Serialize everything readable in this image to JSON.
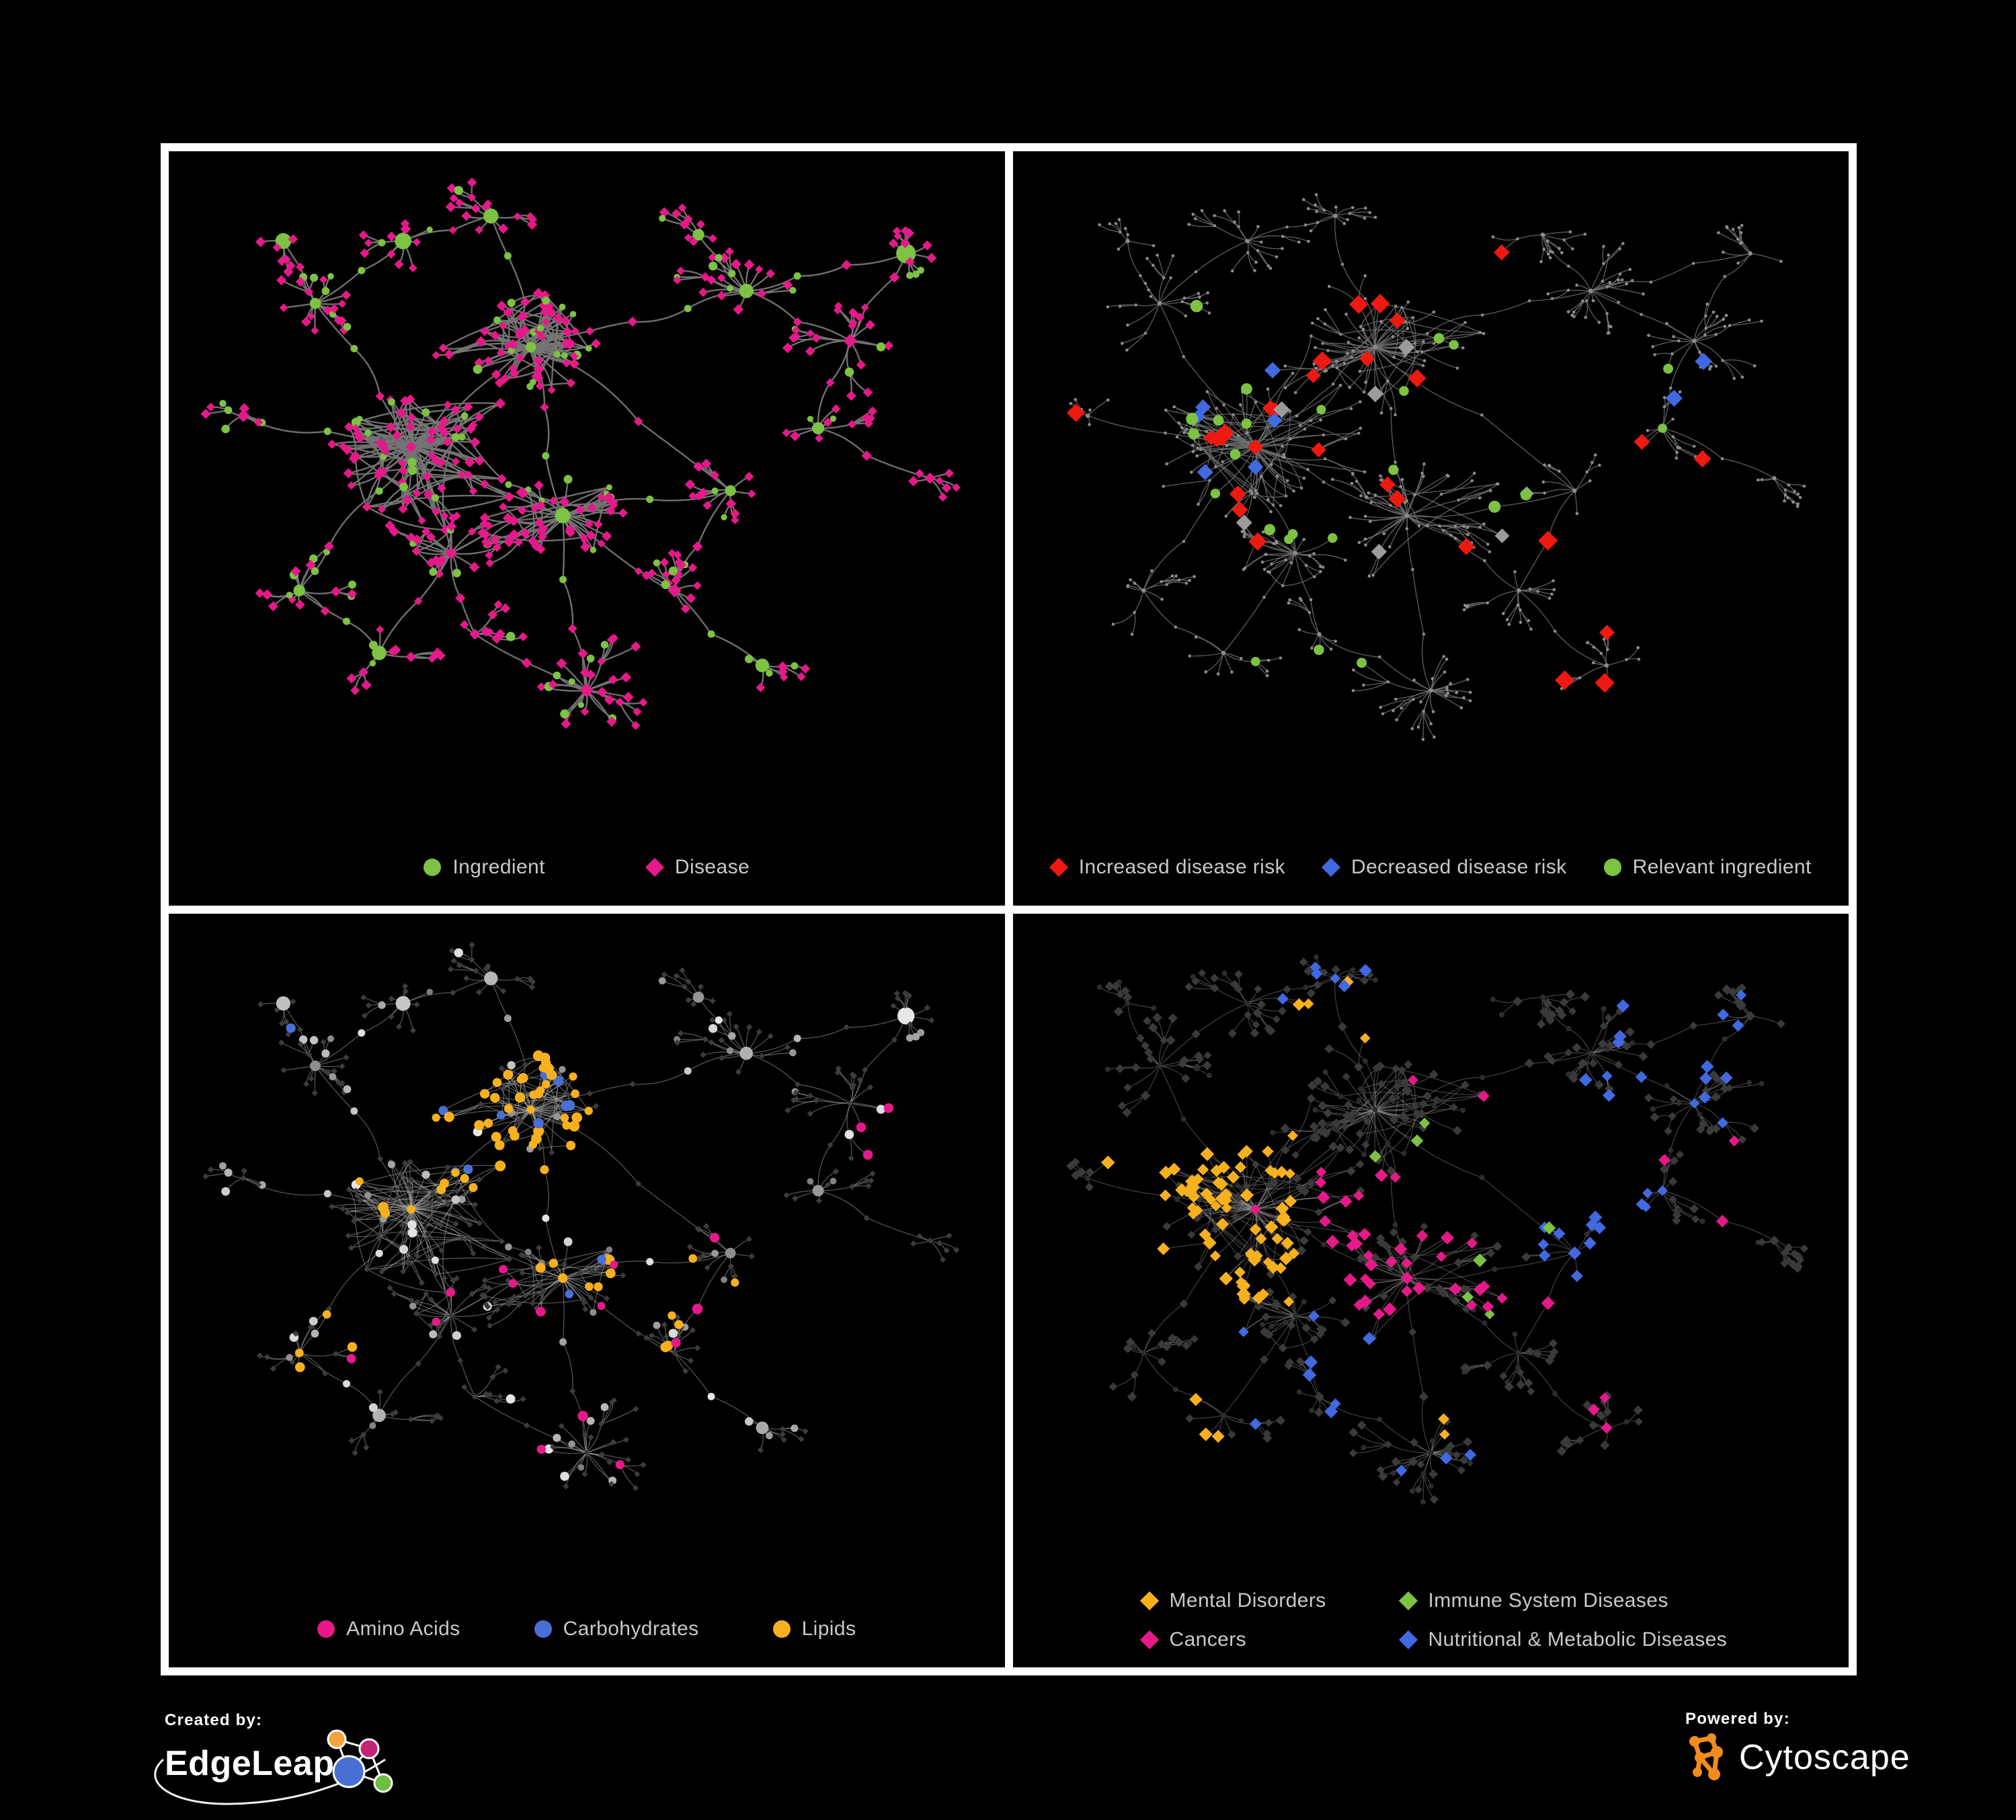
{
  "figure": {
    "background": "#000000",
    "frame_color": "#ffffff",
    "legend_text_color": "#C9C9C9"
  },
  "branding": {
    "created_by_label": "Created by:",
    "edgeleap_name": "EdgeLeap",
    "powered_by_label": "Powered by:",
    "cytoscape_name": "Cytoscape",
    "cytoscape_orange": "#F28C1D",
    "edgeleap_colors": {
      "orange": "#F2A33C",
      "magenta": "#C22573",
      "blue": "#4A6FD4",
      "green": "#6CBF3F"
    }
  },
  "palette": {
    "green": "#7DC242",
    "magenta": "#E6198A",
    "red": "#EE1911",
    "blue": "#4169E1",
    "orange": "#F7B01E",
    "gray_diamond": "#9B9B9B",
    "tiny_gray": "#8C8C8C",
    "dim_diamond": "#3C3C3C",
    "dim_diamond2": "#3A3A3A",
    "dim_circle": "#2D2D2D"
  },
  "panels": [
    {
      "id": "ingredient-disease-network",
      "legend": [
        {
          "label": "Ingredient",
          "shape": "circle",
          "color": "#7DC242"
        },
        {
          "label": "Disease",
          "shape": "diamond",
          "color": "#E6198A"
        }
      ]
    },
    {
      "id": "disease-risk-network",
      "legend": [
        {
          "label": "Increased disease risk",
          "shape": "diamond",
          "color": "#EE1911"
        },
        {
          "label": "Decreased disease risk",
          "shape": "diamond",
          "color": "#4169E1"
        },
        {
          "label": "Relevant ingredient",
          "shape": "circle",
          "color": "#7DC242"
        }
      ]
    },
    {
      "id": "nutrient-class-network",
      "legend": [
        {
          "label": "Amino Acids",
          "shape": "circle",
          "color": "#E6198A"
        },
        {
          "label": "Carbohydrates",
          "shape": "circle",
          "color": "#4A6FD4"
        },
        {
          "label": "Lipids",
          "shape": "circle",
          "color": "#F7B01E"
        }
      ]
    },
    {
      "id": "disease-class-network",
      "legend": [
        {
          "label": "Mental Disorders",
          "shape": "diamond",
          "color": "#F7B01E"
        },
        {
          "label": "Immune System Diseases",
          "shape": "diamond",
          "color": "#7DC242"
        },
        {
          "label": "Cancers",
          "shape": "diamond",
          "color": "#E6198A"
        },
        {
          "label": "Nutritional & Metabolic Diseases",
          "shape": "diamond",
          "color": "#4169E1"
        }
      ]
    }
  ],
  "chart_data": {
    "type": "network",
    "description": "Four views of the same ingredient-disease association network (node-link diagrams on black). Top-left: ingredients (green circles) vs diseases (magenta diamonds). Top-right: dimmed network with highlighted increased (red diamond) / decreased (blue diamond) disease-risk nodes, gray diamonds and relevant ingredients (green circles). Bottom-left: nutrient classes highlighted as colored circles. Bottom-right: disease classes highlighted as colored diamonds.",
    "approx_nodes_per_panel": 560,
    "approx_edges_per_panel": 700,
    "topology": {
      "clusters": [
        {
          "x": 0.28,
          "y": 0.45,
          "r": 0.085,
          "leaves": 60,
          "mesh": 70,
          "branch": 0.15
        },
        {
          "x": 0.43,
          "y": 0.29,
          "r": 0.075,
          "leaves": 48,
          "mesh": 50,
          "branch": 0.15
        },
        {
          "x": 0.47,
          "y": 0.56,
          "r": 0.07,
          "leaves": 30,
          "mesh": 12,
          "branch": 0.2
        },
        {
          "x": 0.33,
          "y": 0.62,
          "r": 0.055,
          "leaves": 20,
          "mesh": 8,
          "branch": 0.2
        },
        {
          "x": 0.5,
          "y": 0.84,
          "r": 0.06,
          "leaves": 24,
          "mesh": 0,
          "branch": 0.05
        },
        {
          "x": 0.16,
          "y": 0.22,
          "r": 0.05,
          "leaves": 11,
          "mesh": 0,
          "branch": 0.3
        },
        {
          "x": 0.27,
          "y": 0.12,
          "r": 0.045,
          "leaves": 9,
          "mesh": 0,
          "branch": 0.3
        },
        {
          "x": 0.38,
          "y": 0.08,
          "r": 0.04,
          "leaves": 8,
          "mesh": 0,
          "branch": 0.25
        },
        {
          "x": 0.7,
          "y": 0.2,
          "r": 0.055,
          "leaves": 13,
          "mesh": 0,
          "branch": 0.35
        },
        {
          "x": 0.83,
          "y": 0.28,
          "r": 0.05,
          "leaves": 11,
          "mesh": 0,
          "branch": 0.3
        },
        {
          "x": 0.64,
          "y": 0.11,
          "r": 0.04,
          "leaves": 6,
          "mesh": 0,
          "branch": 0.3
        },
        {
          "x": 0.79,
          "y": 0.42,
          "r": 0.045,
          "leaves": 8,
          "mesh": 0,
          "branch": 0.3
        },
        {
          "x": 0.93,
          "y": 0.5,
          "r": 0.035,
          "leaves": 5,
          "mesh": 0,
          "branch": 0.2
        },
        {
          "x": 0.14,
          "y": 0.68,
          "r": 0.045,
          "leaves": 9,
          "mesh": 0,
          "branch": 0.25
        },
        {
          "x": 0.24,
          "y": 0.78,
          "r": 0.045,
          "leaves": 7,
          "mesh": 0,
          "branch": 0.25
        },
        {
          "x": 0.61,
          "y": 0.68,
          "r": 0.045,
          "leaves": 8,
          "mesh": 0,
          "branch": 0.3
        },
        {
          "x": 0.68,
          "y": 0.52,
          "r": 0.04,
          "leaves": 6,
          "mesh": 0,
          "branch": 0.3
        },
        {
          "x": 0.07,
          "y": 0.4,
          "r": 0.035,
          "leaves": 5,
          "mesh": 0,
          "branch": 0.2
        },
        {
          "x": 0.12,
          "y": 0.12,
          "r": 0.035,
          "leaves": 5,
          "mesh": 0,
          "branch": 0.2
        },
        {
          "x": 0.9,
          "y": 0.14,
          "r": 0.04,
          "leaves": 6,
          "mesh": 0,
          "branch": 0.25
        },
        {
          "x": 0.72,
          "y": 0.8,
          "r": 0.04,
          "leaves": 6,
          "mesh": 0,
          "branch": 0.25
        },
        {
          "x": 0.36,
          "y": 0.75,
          "r": 0.04,
          "leaves": 6,
          "mesh": 0,
          "branch": 0.25
        }
      ],
      "links": [
        [
          0,
          1,
          2
        ],
        [
          0,
          2,
          1
        ],
        [
          0,
          3,
          1
        ],
        [
          1,
          2,
          2
        ],
        [
          0,
          5,
          2
        ],
        [
          5,
          6,
          1
        ],
        [
          6,
          7,
          1
        ],
        [
          1,
          7,
          2
        ],
        [
          1,
          8,
          3
        ],
        [
          8,
          9,
          1
        ],
        [
          8,
          10,
          1
        ],
        [
          9,
          11,
          1
        ],
        [
          11,
          12,
          1
        ],
        [
          0,
          13,
          2
        ],
        [
          13,
          14,
          1
        ],
        [
          2,
          4,
          2
        ],
        [
          2,
          15,
          2
        ],
        [
          15,
          16,
          1
        ],
        [
          0,
          17,
          1
        ],
        [
          5,
          18,
          1
        ],
        [
          9,
          19,
          2
        ],
        [
          15,
          20,
          1
        ],
        [
          3,
          21,
          1
        ],
        [
          4,
          21,
          1
        ],
        [
          1,
          16,
          1
        ],
        [
          3,
          14,
          1
        ],
        [
          2,
          16,
          1
        ],
        [
          8,
          19,
          2
        ]
      ]
    },
    "views": [
      {
        "name": "Ingredient and disease network",
        "panel": 0,
        "seed": 20,
        "variant": "dense",
        "style": "p1",
        "edge": {
          "color": "#757575",
          "width": 2.4,
          "opacity": 0.95
        },
        "overlays": []
      },
      {
        "name": "Disease risk highlights",
        "panel": 1,
        "seed": 77,
        "variant": "dendritic",
        "style": "p2",
        "edge": {
          "color": "#6E6E6E",
          "width": 1.4,
          "opacity": 0.8
        },
        "overlays": [
          {
            "color": "#EE1911",
            "shape": "diamond",
            "size": 13,
            "count": 22,
            "region": [
              0.2,
              0.22,
              0.66,
              0.62
            ]
          },
          {
            "color": "#EE1911",
            "shape": "diamond",
            "size": 13,
            "count": 3,
            "region": [
              0.66,
              0.66,
              0.9,
              0.84
            ]
          },
          {
            "color": "#EE1911",
            "shape": "diamond",
            "size": 12,
            "count": 1,
            "region": [
              0.05,
              0.28,
              0.16,
              0.4
            ]
          },
          {
            "color": "#EE1911",
            "shape": "diamond",
            "size": 12,
            "count": 1,
            "region": [
              0.5,
              0.12,
              0.62,
              0.2
            ]
          },
          {
            "color": "#EE1911",
            "shape": "diamond",
            "size": 12,
            "count": 2,
            "region": [
              0.74,
              0.36,
              0.92,
              0.52
            ]
          },
          {
            "color": "#4169E1",
            "shape": "diamond",
            "size": 12,
            "count": 6,
            "region": [
              0.2,
              0.28,
              0.34,
              0.5
            ]
          },
          {
            "color": "#4169E1",
            "shape": "diamond",
            "size": 12,
            "count": 2,
            "region": [
              0.77,
              0.3,
              0.87,
              0.4
            ]
          },
          {
            "color": "#9B9B9B",
            "shape": "diamond",
            "size": 12,
            "count": 7,
            "region": [
              0.24,
              0.28,
              0.64,
              0.62
            ]
          },
          {
            "color": "#9B9B9B",
            "shape": "diamond",
            "size": 11,
            "count": 2,
            "region": [
              0.72,
              0.56,
              0.86,
              0.72
            ]
          },
          {
            "color": "#7DC242",
            "shape": "circle",
            "size": 8,
            "count": 20,
            "region": [
              0.2,
              0.2,
              0.62,
              0.6
            ]
          },
          {
            "color": "#7DC242",
            "shape": "circle",
            "size": 8,
            "count": 2,
            "region": [
              0.74,
              0.3,
              0.84,
              0.42
            ]
          },
          {
            "color": "#7DC242",
            "shape": "circle",
            "size": 7,
            "count": 3,
            "region": [
              0.28,
              0.64,
              0.52,
              0.8
            ]
          }
        ]
      },
      {
        "name": "Nutrient classes",
        "panel": 2,
        "seed": 20,
        "variant": "dense",
        "style": "p3",
        "edge": {
          "color": "#A5A5A5",
          "width": 1.3,
          "opacity": 0.5
        },
        "overlays": [
          {
            "color": "#F7B01E",
            "shape": "circle",
            "size": 7,
            "count": 46,
            "region": [
              0.31,
              0.17,
              0.55,
              0.42
            ]
          },
          {
            "color": "#F7B01E",
            "shape": "circle",
            "size": 7,
            "count": 8,
            "region": [
              0.4,
              0.52,
              0.6,
              0.68
            ]
          },
          {
            "color": "#F7B01E",
            "shape": "circle",
            "size": 7,
            "count": 5,
            "region": [
              0.6,
              0.5,
              0.8,
              0.68
            ]
          },
          {
            "color": "#F7B01E",
            "shape": "circle",
            "size": 7,
            "count": 4,
            "region": [
              0.12,
              0.55,
              0.3,
              0.76
            ]
          },
          {
            "color": "#F7B01E",
            "shape": "circle",
            "size": 7,
            "count": 4,
            "region": [
              0.15,
              0.28,
              0.3,
              0.46
            ]
          },
          {
            "color": "#4A6FD4",
            "shape": "circle",
            "size": 7,
            "count": 9,
            "region": [
              0.32,
              0.18,
              0.52,
              0.4
            ]
          },
          {
            "color": "#4A6FD4",
            "shape": "circle",
            "size": 7,
            "count": 1,
            "region": [
              0.04,
              0.1,
              0.14,
              0.22
            ]
          },
          {
            "color": "#4A6FD4",
            "shape": "circle",
            "size": 7,
            "count": 1,
            "region": [
              0.7,
              0.56,
              0.82,
              0.68
            ]
          },
          {
            "color": "#4A6FD4",
            "shape": "circle",
            "size": 7,
            "count": 2,
            "region": [
              0.36,
              0.44,
              0.56,
              0.6
            ]
          },
          {
            "color": "#E6198A",
            "shape": "circle",
            "size": 7,
            "count": 12,
            "region": [
              0.06,
              0.1,
              0.92,
              0.86
            ]
          },
          {
            "color": "#E6198A",
            "shape": "circle",
            "size": 7,
            "count": 2,
            "region": [
              0.84,
              0.22,
              0.96,
              0.38
            ]
          },
          {
            "color": "#E6198A",
            "shape": "circle",
            "size": 7,
            "count": 3,
            "region": [
              0.3,
              0.62,
              0.55,
              0.86
            ]
          }
        ]
      },
      {
        "name": "Disease classes",
        "panel": 3,
        "seed": 77,
        "variant": "dendritic",
        "style": "p4",
        "edge": {
          "color": "#9C9C9C",
          "width": 1.2,
          "opacity": 0.42
        },
        "overlays": [
          {
            "color": "#F7B01E",
            "shape": "diamond",
            "size": 9,
            "count": 78,
            "region": [
              0.08,
              0.32,
              0.33,
              0.6
            ]
          },
          {
            "color": "#F7B01E",
            "shape": "diamond",
            "size": 9,
            "count": 4,
            "region": [
              0.28,
              0.06,
              0.44,
              0.18
            ]
          },
          {
            "color": "#F7B01E",
            "shape": "diamond",
            "size": 9,
            "count": 3,
            "region": [
              0.1,
              0.72,
              0.26,
              0.86
            ]
          },
          {
            "color": "#F7B01E",
            "shape": "diamond",
            "size": 9,
            "count": 2,
            "region": [
              0.38,
              0.7,
              0.52,
              0.82
            ]
          },
          {
            "color": "#E6198A",
            "shape": "diamond",
            "size": 9,
            "count": 38,
            "region": [
              0.36,
              0.36,
              0.62,
              0.62
            ]
          },
          {
            "color": "#E6198A",
            "shape": "diamond",
            "size": 9,
            "count": 5,
            "region": [
              0.86,
              0.34,
              0.98,
              0.48
            ]
          },
          {
            "color": "#E6198A",
            "shape": "diamond",
            "size": 9,
            "count": 3,
            "region": [
              0.55,
              0.74,
              0.72,
              0.86
            ]
          },
          {
            "color": "#E6198A",
            "shape": "diamond",
            "size": 9,
            "count": 6,
            "region": [
              0.2,
              0.2,
              0.8,
              0.72
            ]
          },
          {
            "color": "#4169E1",
            "shape": "diamond",
            "size": 9,
            "count": 15,
            "region": [
              0.62,
              0.42,
              0.8,
              0.58
            ]
          },
          {
            "color": "#4169E1",
            "shape": "diamond",
            "size": 9,
            "count": 16,
            "region": [
              0.68,
              0.1,
              0.96,
              0.36
            ]
          },
          {
            "color": "#4169E1",
            "shape": "diamond",
            "size": 9,
            "count": 8,
            "region": [
              0.25,
              0.6,
              0.44,
              0.8
            ]
          },
          {
            "color": "#4169E1",
            "shape": "diamond",
            "size": 9,
            "count": 6,
            "region": [
              0.3,
              0.04,
              0.56,
              0.16
            ]
          },
          {
            "color": "#4169E1",
            "shape": "diamond",
            "size": 9,
            "count": 4,
            "region": [
              0.84,
              0.58,
              0.96,
              0.76
            ]
          },
          {
            "color": "#4169E1",
            "shape": "diamond",
            "size": 9,
            "count": 3,
            "region": [
              0.44,
              0.84,
              0.62,
              0.95
            ]
          },
          {
            "color": "#7DC242",
            "shape": "diamond",
            "size": 9,
            "count": 7,
            "region": [
              0.35,
              0.25,
              0.72,
              0.72
            ]
          }
        ]
      }
    ]
  }
}
